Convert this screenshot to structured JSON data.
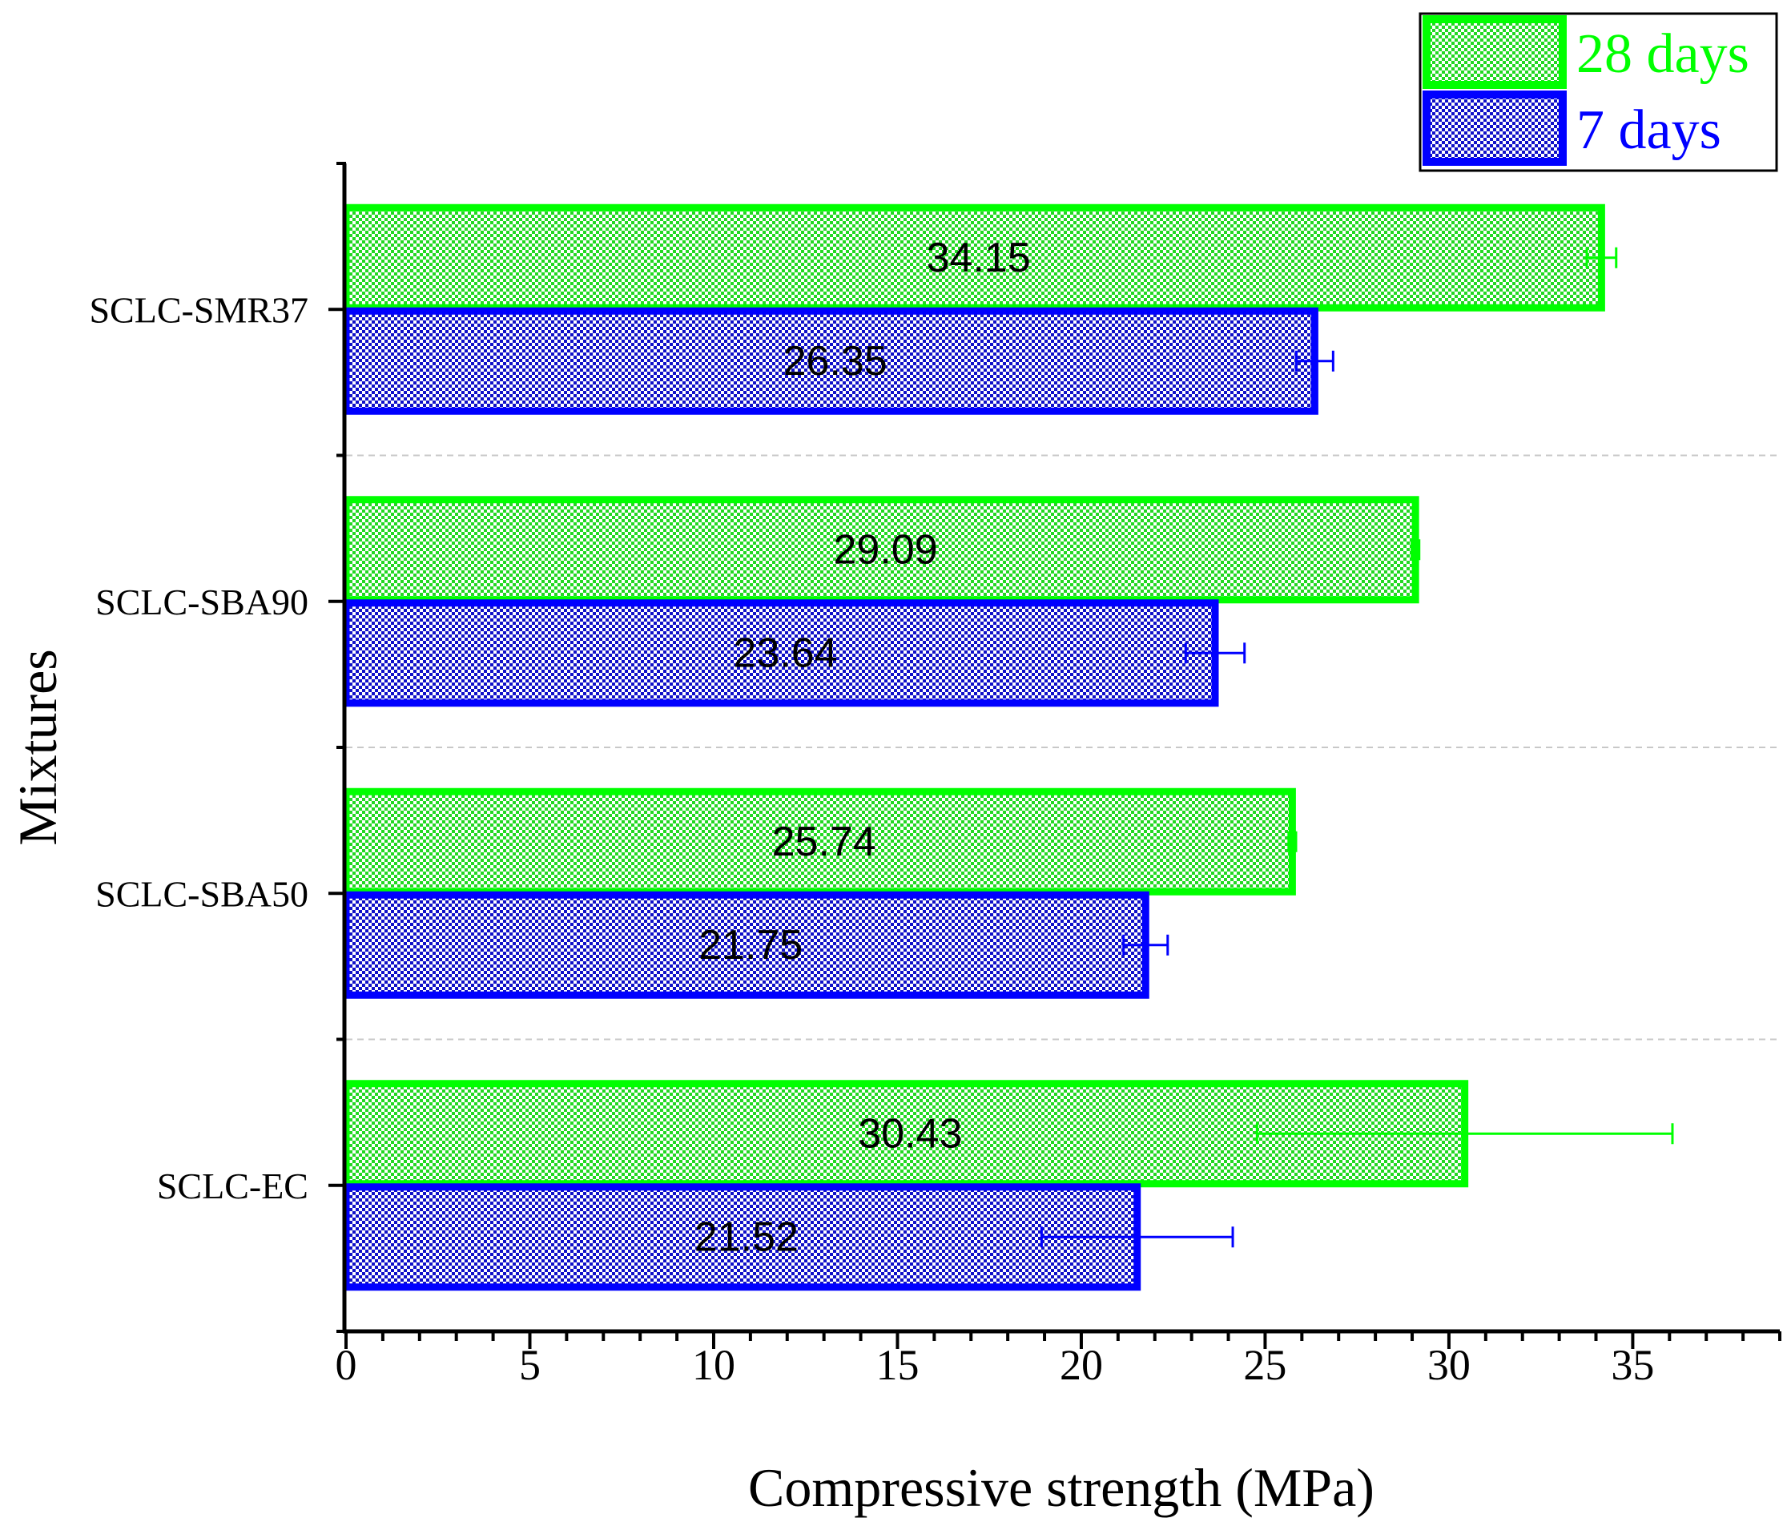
{
  "chart_data": {
    "type": "bar",
    "orientation": "horizontal",
    "categories": [
      "SCLC-EC",
      "SCLC-SBA50",
      "SCLC-SBA90",
      "SCLC-SMR37"
    ],
    "series": [
      {
        "name": "28 days",
        "values": [
          30.43,
          25.74,
          29.09,
          34.15
        ],
        "labels": [
          "30.43",
          "25.74",
          "29.09",
          "34.15"
        ],
        "error": [
          5.65,
          0.1,
          0.1,
          0.4
        ],
        "color": "#00ff00",
        "pattern": "checker-green"
      },
      {
        "name": "7 days",
        "values": [
          21.52,
          21.75,
          23.64,
          26.35
        ],
        "labels": [
          "21.52",
          "21.75",
          "23.64",
          "26.35"
        ],
        "error": [
          2.6,
          0.6,
          0.8,
          0.5
        ],
        "color": "#0000ff",
        "pattern": "checker-blue"
      }
    ],
    "xlabel": "Compressive strength (MPa)",
    "ylabel": "Mixtures",
    "xlim": [
      0,
      39
    ],
    "xticks": [
      0,
      5,
      10,
      15,
      20,
      25,
      30,
      35
    ],
    "xtick_labels": [
      "0",
      "5",
      "10",
      "15",
      "20",
      "25",
      "30",
      "35"
    ],
    "minor_tick_step": 1,
    "legend": {
      "position": "top-right",
      "entries": [
        "28 days",
        "7 days"
      ]
    },
    "gridlines": "dashed separators between categories"
  }
}
